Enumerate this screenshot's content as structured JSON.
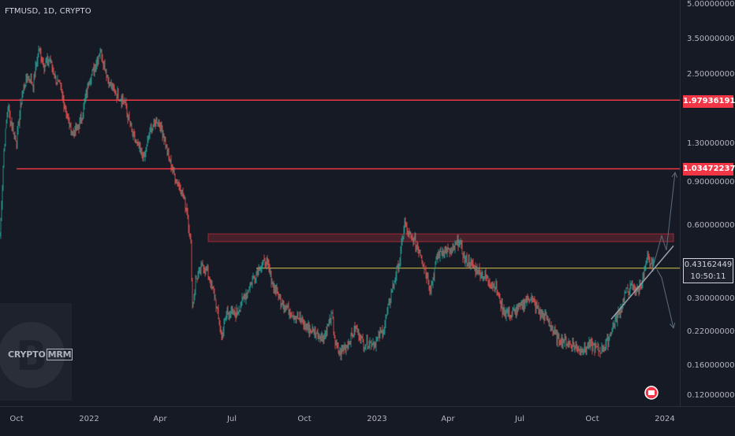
{
  "header": {
    "title": "FTMUSD, 1D, CRYPTO"
  },
  "logo": {
    "text_a": "CRYPTO",
    "text_b": "MRM"
  },
  "price_tags": {
    "upper": "1.97936191",
    "lower": "1.03472237",
    "current": "0.43162449",
    "countdown": "10:50:11"
  },
  "colors": {
    "background": "#161a25",
    "up": "#26a69a",
    "down": "#ef5350",
    "resistance": "#f23645",
    "support": "#d6c84c",
    "projection": "#5c6d7e"
  },
  "chart_data": {
    "type": "candlestick",
    "y_scale": "log",
    "ylim": [
      0.11,
      5.1
    ],
    "y_ticks": [
      {
        "value": 5.0,
        "label": "5.00000000"
      },
      {
        "value": 3.5,
        "label": "3.50000000"
      },
      {
        "value": 2.5,
        "label": "2.50000000"
      },
      {
        "value": 1.3,
        "label": "1.30000000"
      },
      {
        "value": 0.9,
        "label": "0.90000000"
      },
      {
        "value": 0.6,
        "label": "0.60000000"
      },
      {
        "value": 0.3,
        "label": "0.30000000"
      },
      {
        "value": 0.22,
        "label": "0.22000000"
      },
      {
        "value": 0.16,
        "label": "0.16000000"
      },
      {
        "value": 0.12,
        "label": "0.12000000"
      }
    ],
    "x_range": [
      "2021-09-10",
      "2024-01-20"
    ],
    "x_ticks": [
      {
        "date": "2021-10-01",
        "label": "Oct"
      },
      {
        "date": "2022-01-01",
        "label": "2022"
      },
      {
        "date": "2022-04-01",
        "label": "Apr"
      },
      {
        "date": "2022-07-01",
        "label": "Jul"
      },
      {
        "date": "2022-10-01",
        "label": "Oct"
      },
      {
        "date": "2023-01-01",
        "label": "2023"
      },
      {
        "date": "2023-04-01",
        "label": "Apr"
      },
      {
        "date": "2023-07-01",
        "label": "Jul"
      },
      {
        "date": "2023-10-01",
        "label": "Oct"
      },
      {
        "date": "2024-01-01",
        "label": "2024"
      }
    ],
    "price_path": [
      [
        "2021-09-10",
        0.55
      ],
      [
        "2021-09-15",
        1.25
      ],
      [
        "2021-09-20",
        1.85
      ],
      [
        "2021-09-25",
        1.55
      ],
      [
        "2021-10-01",
        1.35
      ],
      [
        "2021-10-08",
        2.1
      ],
      [
        "2021-10-15",
        2.5
      ],
      [
        "2021-10-22",
        2.3
      ],
      [
        "2021-10-29",
        3.2
      ],
      [
        "2021-11-05",
        2.75
      ],
      [
        "2021-11-12",
        2.9
      ],
      [
        "2021-11-19",
        2.45
      ],
      [
        "2021-11-26",
        2.2
      ],
      [
        "2021-12-03",
        1.75
      ],
      [
        "2021-12-10",
        1.45
      ],
      [
        "2021-12-17",
        1.5
      ],
      [
        "2021-12-24",
        1.75
      ],
      [
        "2021-12-31",
        2.35
      ],
      [
        "2022-01-08",
        2.7
      ],
      [
        "2022-01-15",
        3.2
      ],
      [
        "2022-01-20",
        2.8
      ],
      [
        "2022-01-27",
        2.3
      ],
      [
        "2022-02-05",
        2.1
      ],
      [
        "2022-02-15",
        1.95
      ],
      [
        "2022-02-24",
        1.45
      ],
      [
        "2022-03-05",
        1.25
      ],
      [
        "2022-03-12",
        1.15
      ],
      [
        "2022-03-20",
        1.5
      ],
      [
        "2022-03-28",
        1.65
      ],
      [
        "2022-04-05",
        1.45
      ],
      [
        "2022-04-12",
        1.15
      ],
      [
        "2022-04-20",
        0.95
      ],
      [
        "2022-04-28",
        0.85
      ],
      [
        "2022-05-05",
        0.7
      ],
      [
        "2022-05-10",
        0.5
      ],
      [
        "2022-05-12",
        0.28
      ],
      [
        "2022-05-16",
        0.36
      ],
      [
        "2022-05-25",
        0.42
      ],
      [
        "2022-06-01",
        0.38
      ],
      [
        "2022-06-10",
        0.3
      ],
      [
        "2022-06-18",
        0.21
      ],
      [
        "2022-06-25",
        0.27
      ],
      [
        "2022-07-05",
        0.26
      ],
      [
        "2022-07-15",
        0.3
      ],
      [
        "2022-07-25",
        0.35
      ],
      [
        "2022-08-05",
        0.41
      ],
      [
        "2022-08-14",
        0.43
      ],
      [
        "2022-08-22",
        0.35
      ],
      [
        "2022-09-01",
        0.3
      ],
      [
        "2022-09-12",
        0.27
      ],
      [
        "2022-09-25",
        0.25
      ],
      [
        "2022-10-05",
        0.23
      ],
      [
        "2022-10-15",
        0.22
      ],
      [
        "2022-10-25",
        0.21
      ],
      [
        "2022-11-05",
        0.26
      ],
      [
        "2022-11-09",
        0.2
      ],
      [
        "2022-11-15",
        0.18
      ],
      [
        "2022-11-25",
        0.2
      ],
      [
        "2022-12-05",
        0.23
      ],
      [
        "2022-12-15",
        0.2
      ],
      [
        "2022-12-30",
        0.2
      ],
      [
        "2023-01-10",
        0.23
      ],
      [
        "2023-01-20",
        0.33
      ],
      [
        "2023-01-30",
        0.44
      ],
      [
        "2023-02-05",
        0.62
      ],
      [
        "2023-02-10",
        0.55
      ],
      [
        "2023-02-18",
        0.52
      ],
      [
        "2023-02-25",
        0.47
      ],
      [
        "2023-03-05",
        0.38
      ],
      [
        "2023-03-10",
        0.33
      ],
      [
        "2023-03-18",
        0.45
      ],
      [
        "2023-03-25",
        0.48
      ],
      [
        "2023-04-05",
        0.47
      ],
      [
        "2023-04-15",
        0.53
      ],
      [
        "2023-04-22",
        0.44
      ],
      [
        "2023-05-01",
        0.42
      ],
      [
        "2023-05-15",
        0.38
      ],
      [
        "2023-06-01",
        0.34
      ],
      [
        "2023-06-10",
        0.27
      ],
      [
        "2023-06-20",
        0.26
      ],
      [
        "2023-07-01",
        0.28
      ],
      [
        "2023-07-14",
        0.31
      ],
      [
        "2023-07-25",
        0.27
      ],
      [
        "2023-08-05",
        0.25
      ],
      [
        "2023-08-17",
        0.21
      ],
      [
        "2023-09-01",
        0.2
      ],
      [
        "2023-09-15",
        0.19
      ],
      [
        "2023-10-01",
        0.195
      ],
      [
        "2023-10-10",
        0.185
      ],
      [
        "2023-10-20",
        0.2
      ],
      [
        "2023-10-28",
        0.24
      ],
      [
        "2023-11-05",
        0.27
      ],
      [
        "2023-11-12",
        0.32
      ],
      [
        "2023-11-20",
        0.34
      ],
      [
        "2023-11-28",
        0.33
      ],
      [
        "2023-12-05",
        0.37
      ],
      [
        "2023-12-10",
        0.45
      ],
      [
        "2023-12-14",
        0.42
      ],
      [
        "2023-12-18",
        0.4316
      ]
    ],
    "horizontal_lines": [
      {
        "name": "resistance-upper",
        "price": 1.97936191,
        "from": "2021-09-10"
      },
      {
        "name": "resistance-lower",
        "price": 1.03472237,
        "from": "2021-10-01"
      },
      {
        "name": "support-mid",
        "price": 0.405,
        "from": "2022-08-01"
      }
    ],
    "zone": {
      "low": 0.52,
      "high": 0.56,
      "from": "2022-06-01",
      "to": "2024-01-12"
    },
    "trendline": [
      [
        "2023-10-25",
        0.25
      ],
      [
        "2024-01-12",
        0.5
      ]
    ],
    "projections": [
      {
        "path": [
          [
            "2023-12-18",
            0.42
          ],
          [
            "2023-12-28",
            0.55
          ],
          [
            "2024-01-03",
            0.48
          ],
          [
            "2024-01-14",
            1.0
          ]
        ],
        "style": "bullish"
      },
      {
        "path": [
          [
            "2023-12-22",
            0.4
          ],
          [
            "2023-12-28",
            0.37
          ],
          [
            "2024-01-12",
            0.23
          ]
        ],
        "style": "bearish"
      }
    ]
  }
}
